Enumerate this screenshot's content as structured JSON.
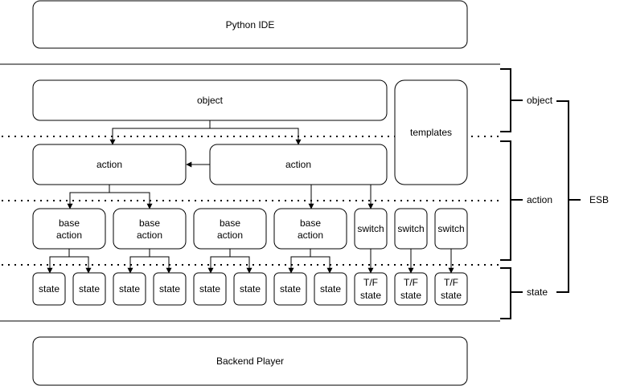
{
  "python_ide": "Python IDE",
  "backend_player": "Backend Player",
  "object": "object",
  "templates": "templates",
  "action_left": "action",
  "action_right": "action",
  "base_actions": [
    [
      "base",
      "action"
    ],
    [
      "base",
      "action"
    ],
    [
      "base",
      "action"
    ],
    [
      "base",
      "action"
    ]
  ],
  "switches": [
    "switch",
    "switch",
    "switch"
  ],
  "states": [
    "state",
    "state",
    "state",
    "state",
    "state",
    "state",
    "state",
    "state"
  ],
  "tf_states": [
    [
      "T/F",
      "state"
    ],
    [
      "T/F",
      "state"
    ],
    [
      "T/F",
      "state"
    ]
  ],
  "brackets": {
    "object": "object",
    "action": "action",
    "state": "state",
    "esb": "ESB"
  }
}
